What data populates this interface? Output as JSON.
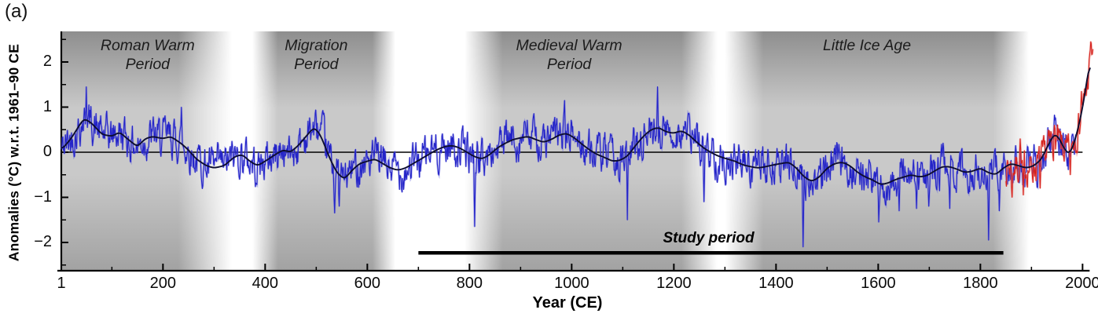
{
  "figure": {
    "panel_label": "(a)",
    "x_axis_label": "Year (CE)",
    "y_axis_label": "Anomalies (°C) w.r.t. 1961–90 CE"
  },
  "chart_data": {
    "type": "line",
    "xlabel": "Year (CE)",
    "ylabel": "Anomalies (°C) w.r.t. 1961–90 CE",
    "xlim": [
      1,
      2020
    ],
    "ylim": [
      -2.62,
      2.67
    ],
    "xticks": [
      1,
      200,
      400,
      600,
      800,
      1000,
      1200,
      1400,
      1600,
      1800,
      2000
    ],
    "x_minor_step": 100,
    "yticks": [
      -2,
      -1,
      0,
      1,
      2
    ],
    "y_minor_step": 0.5,
    "grid": false,
    "legend": "none",
    "zero_line": true,
    "colors": {
      "reconstruction": "#2424c8",
      "reconstruction_halo": "rgba(110,110,225,0.45)",
      "instrumental": "#d62420",
      "instrumental_halo": "rgba(235,120,110,0.5)",
      "smoothed": "#0d0d30",
      "band_top": "#8e8e8e",
      "band_mid": "#c9c9c9",
      "band_bottom": "#a2a2a2"
    },
    "periods": [
      {
        "label": "Roman Warm\nPeriod",
        "start": 1,
        "end": 335,
        "core_start": 1,
        "core_end": 230,
        "label_center_year": 170
      },
      {
        "label": "Migration\nPeriod",
        "start": 375,
        "end": 655,
        "core_start": 425,
        "core_end": 610,
        "label_center_year": 500
      },
      {
        "label": "Medieval Warm\nPeriod",
        "start": 790,
        "end": 1285,
        "core_start": 865,
        "core_end": 1215,
        "label_center_year": 995
      },
      {
        "label": "Little Ice Age",
        "start": 1300,
        "end": 1895,
        "core_start": 1375,
        "core_end": 1825,
        "label_center_year": 1578
      }
    ],
    "study_period": {
      "label": "Study period",
      "start": 700,
      "end": 1845,
      "bar_y_value": -2.23,
      "label_center_year": 1268
    },
    "series": [
      {
        "name": "annual-reconstruction",
        "style": "annual",
        "color_key": "reconstruction",
        "year_range": [
          1,
          1987
        ],
        "base": "smoothed_anchors",
        "noise_sd": 0.33,
        "noise_ar": 0.6,
        "seed": 42,
        "clamp": [
          -2.12,
          1.47
        ],
        "extremes": [
          [
            50,
            1.45
          ],
          [
            236,
            1.0
          ],
          [
            536,
            -1.35
          ],
          [
            545,
            -1.2
          ],
          [
            810,
            -1.65
          ],
          [
            986,
            1.15
          ],
          [
            1109,
            -1.5
          ],
          [
            1168,
            1.45
          ],
          [
            1259,
            -1.1
          ],
          [
            1453,
            -2.1
          ],
          [
            1601,
            -1.55
          ],
          [
            1641,
            -1.3
          ],
          [
            1675,
            -1.25
          ],
          [
            1699,
            -1.2
          ],
          [
            1740,
            -1.25
          ],
          [
            1816,
            -1.95
          ],
          [
            1837,
            -1.3
          ]
        ]
      },
      {
        "name": "annual-instrumental",
        "style": "annual",
        "color_key": "instrumental",
        "year_range": [
          1850,
          2020
        ],
        "base": "instrumental_anchors",
        "noise_sd": 0.3,
        "noise_ar": 0.5,
        "seed": 7,
        "clamp": [
          -1.25,
          2.47
        ],
        "extremes": [
          [
            1862,
            -1.0
          ],
          [
            1878,
            0.3
          ],
          [
            1884,
            -0.95
          ],
          [
            1917,
            -0.8
          ],
          [
            1945,
            0.6
          ],
          [
            1976,
            -0.5
          ],
          [
            1998,
            1.35
          ],
          [
            2016,
            2.45
          ]
        ]
      },
      {
        "name": "smoothed-30yr",
        "style": "smooth",
        "color_key": "smoothed",
        "year_range": [
          1,
          2016
        ],
        "base": "smoothed_anchors"
      }
    ],
    "smoothed_anchors": [
      [
        1,
        0.05
      ],
      [
        20,
        0.3
      ],
      [
        45,
        0.75
      ],
      [
        60,
        0.65
      ],
      [
        80,
        0.4
      ],
      [
        100,
        0.35
      ],
      [
        115,
        0.45
      ],
      [
        130,
        0.3
      ],
      [
        150,
        0.12
      ],
      [
        165,
        0.3
      ],
      [
        180,
        0.35
      ],
      [
        200,
        0.3
      ],
      [
        215,
        0.35
      ],
      [
        235,
        0.2
      ],
      [
        250,
        0.05
      ],
      [
        265,
        -0.15
      ],
      [
        285,
        -0.3
      ],
      [
        300,
        -0.35
      ],
      [
        320,
        -0.3
      ],
      [
        340,
        -0.1
      ],
      [
        355,
        -0.05
      ],
      [
        370,
        -0.2
      ],
      [
        385,
        -0.3
      ],
      [
        400,
        -0.2
      ],
      [
        420,
        -0.05
      ],
      [
        435,
        0.05
      ],
      [
        450,
        0.0
      ],
      [
        465,
        0.15
      ],
      [
        480,
        0.35
      ],
      [
        495,
        0.55
      ],
      [
        505,
        0.45
      ],
      [
        515,
        0.2
      ],
      [
        525,
        -0.1
      ],
      [
        540,
        -0.45
      ],
      [
        555,
        -0.6
      ],
      [
        570,
        -0.4
      ],
      [
        585,
        -0.25
      ],
      [
        600,
        -0.2
      ],
      [
        615,
        -0.15
      ],
      [
        630,
        -0.25
      ],
      [
        645,
        -0.35
      ],
      [
        660,
        -0.4
      ],
      [
        675,
        -0.35
      ],
      [
        690,
        -0.25
      ],
      [
        705,
        -0.15
      ],
      [
        720,
        -0.05
      ],
      [
        735,
        0.05
      ],
      [
        750,
        0.12
      ],
      [
        765,
        0.15
      ],
      [
        780,
        0.1
      ],
      [
        795,
        0.0
      ],
      [
        810,
        -0.1
      ],
      [
        825,
        -0.15
      ],
      [
        840,
        -0.05
      ],
      [
        855,
        0.1
      ],
      [
        870,
        0.2
      ],
      [
        885,
        0.28
      ],
      [
        900,
        0.32
      ],
      [
        915,
        0.35
      ],
      [
        930,
        0.28
      ],
      [
        945,
        0.22
      ],
      [
        960,
        0.28
      ],
      [
        975,
        0.38
      ],
      [
        990,
        0.42
      ],
      [
        1005,
        0.32
      ],
      [
        1020,
        0.18
      ],
      [
        1035,
        0.05
      ],
      [
        1050,
        -0.05
      ],
      [
        1065,
        -0.12
      ],
      [
        1080,
        -0.2
      ],
      [
        1095,
        -0.18
      ],
      [
        1110,
        -0.08
      ],
      [
        1125,
        0.15
      ],
      [
        1140,
        0.35
      ],
      [
        1155,
        0.5
      ],
      [
        1170,
        0.55
      ],
      [
        1185,
        0.45
      ],
      [
        1200,
        0.42
      ],
      [
        1215,
        0.48
      ],
      [
        1230,
        0.38
      ],
      [
        1245,
        0.22
      ],
      [
        1260,
        0.08
      ],
      [
        1275,
        -0.02
      ],
      [
        1290,
        -0.1
      ],
      [
        1305,
        -0.15
      ],
      [
        1320,
        -0.2
      ],
      [
        1335,
        -0.28
      ],
      [
        1350,
        -0.32
      ],
      [
        1365,
        -0.35
      ],
      [
        1380,
        -0.32
      ],
      [
        1395,
        -0.28
      ],
      [
        1410,
        -0.25
      ],
      [
        1425,
        -0.22
      ],
      [
        1440,
        -0.35
      ],
      [
        1455,
        -0.55
      ],
      [
        1470,
        -0.65
      ],
      [
        1485,
        -0.55
      ],
      [
        1500,
        -0.35
      ],
      [
        1515,
        -0.25
      ],
      [
        1530,
        -0.22
      ],
      [
        1545,
        -0.3
      ],
      [
        1560,
        -0.45
      ],
      [
        1575,
        -0.55
      ],
      [
        1590,
        -0.62
      ],
      [
        1605,
        -0.72
      ],
      [
        1620,
        -0.68
      ],
      [
        1635,
        -0.6
      ],
      [
        1650,
        -0.55
      ],
      [
        1665,
        -0.5
      ],
      [
        1680,
        -0.55
      ],
      [
        1695,
        -0.52
      ],
      [
        1710,
        -0.42
      ],
      [
        1725,
        -0.32
      ],
      [
        1740,
        -0.32
      ],
      [
        1755,
        -0.38
      ],
      [
        1770,
        -0.45
      ],
      [
        1785,
        -0.42
      ],
      [
        1800,
        -0.35
      ],
      [
        1815,
        -0.45
      ],
      [
        1830,
        -0.5
      ],
      [
        1845,
        -0.35
      ],
      [
        1860,
        -0.25
      ],
      [
        1875,
        -0.3
      ],
      [
        1890,
        -0.35
      ],
      [
        1905,
        -0.3
      ],
      [
        1920,
        -0.15
      ],
      [
        1930,
        0.1
      ],
      [
        1945,
        0.42
      ],
      [
        1955,
        0.3
      ],
      [
        1965,
        0.05
      ],
      [
        1975,
        -0.05
      ],
      [
        1985,
        0.25
      ],
      [
        1995,
        0.7
      ],
      [
        2005,
        1.3
      ],
      [
        2016,
        2.2
      ]
    ],
    "instrumental_anchors": [
      [
        1850,
        -0.35
      ],
      [
        1865,
        -0.3
      ],
      [
        1880,
        -0.35
      ],
      [
        1895,
        -0.35
      ],
      [
        1910,
        -0.3
      ],
      [
        1925,
        -0.1
      ],
      [
        1940,
        0.3
      ],
      [
        1950,
        0.25
      ],
      [
        1960,
        0.1
      ],
      [
        1970,
        -0.05
      ],
      [
        1980,
        0.2
      ],
      [
        1990,
        0.5
      ],
      [
        2000,
        0.9
      ],
      [
        2008,
        1.4
      ],
      [
        2014,
        1.9
      ],
      [
        2020,
        2.35
      ]
    ]
  }
}
